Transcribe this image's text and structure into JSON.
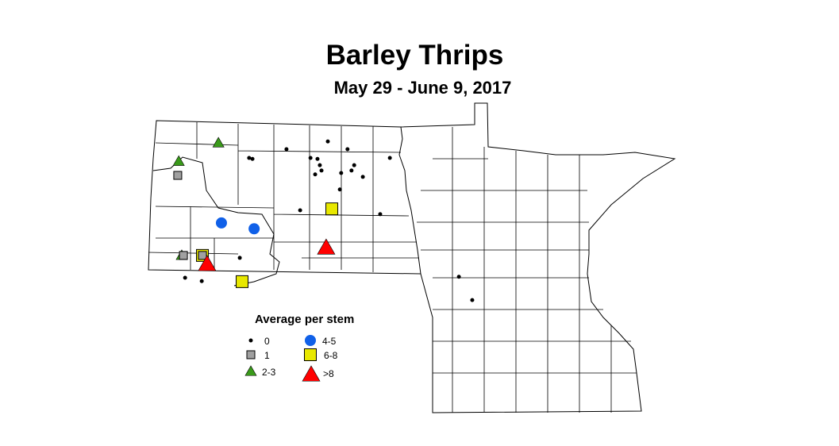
{
  "title": "Barley Thrips",
  "subtitle": "May 29 - June 9, 2017",
  "legend": {
    "title": "Average per stem",
    "classes": [
      {
        "label": "0",
        "symbol": "dot",
        "color": "#000000"
      },
      {
        "label": "1",
        "symbol": "square",
        "color": "#a0a0a0"
      },
      {
        "label": "2-3",
        "symbol": "triangle",
        "color": "#3a9a1a"
      },
      {
        "label": "4-5",
        "symbol": "circle",
        "color": "#1060e8"
      },
      {
        "label": "6-8",
        "symbol": "square",
        "color": "#e8e800"
      },
      {
        "label": ">8",
        "symbol": "triangle",
        "color": "#ff0000"
      }
    ]
  },
  "sites": [
    {
      "lon": -100.03,
      "lat": 48.46,
      "class": "0"
    },
    {
      "lon": -98.79,
      "lat": 48.62,
      "class": "0"
    },
    {
      "lon": -98.2,
      "lat": 48.46,
      "class": "0"
    },
    {
      "lon": -101.15,
      "lat": 48.28,
      "class": "0"
    },
    {
      "lon": -101.05,
      "lat": 48.26,
      "class": "0"
    },
    {
      "lon": -99.31,
      "lat": 48.28,
      "class": "0"
    },
    {
      "lon": -99.1,
      "lat": 48.26,
      "class": "0"
    },
    {
      "lon": -99.03,
      "lat": 48.13,
      "class": "0"
    },
    {
      "lon": -98.98,
      "lat": 48.02,
      "class": "0"
    },
    {
      "lon": -99.17,
      "lat": 47.94,
      "class": "0"
    },
    {
      "lon": -98.39,
      "lat": 47.97,
      "class": "0"
    },
    {
      "lon": -98.0,
      "lat": 48.13,
      "class": "0"
    },
    {
      "lon": -98.08,
      "lat": 48.02,
      "class": "0"
    },
    {
      "lon": -97.74,
      "lat": 47.89,
      "class": "0"
    },
    {
      "lon": -96.93,
      "lat": 48.28,
      "class": "0"
    },
    {
      "lon": -98.43,
      "lat": 47.63,
      "class": "0"
    },
    {
      "lon": -99.62,
      "lat": 47.2,
      "class": "0"
    },
    {
      "lon": -97.22,
      "lat": 47.12,
      "class": "0"
    },
    {
      "lon": -101.43,
      "lat": 46.22,
      "class": "0"
    },
    {
      "lon": -103.07,
      "lat": 45.81,
      "class": "0"
    },
    {
      "lon": -102.57,
      "lat": 45.74,
      "class": "0"
    },
    {
      "lon": -94.86,
      "lat": 45.83,
      "class": "0"
    },
    {
      "lon": -94.46,
      "lat": 45.35,
      "class": "0"
    },
    {
      "lon": -103.26,
      "lat": 48.21,
      "class": "2-3"
    },
    {
      "lon": -102.07,
      "lat": 48.59,
      "class": "2-3"
    },
    {
      "lon": -103.17,
      "lat": 46.27,
      "class": "2-3"
    },
    {
      "lon": -102.55,
      "lat": 46.27,
      "class": "6-8"
    },
    {
      "lon": -98.67,
      "lat": 47.23,
      "class": "6-8"
    },
    {
      "lon": -101.36,
      "lat": 45.73,
      "class": "6-8"
    },
    {
      "lon": -103.29,
      "lat": 47.92,
      "class": "1"
    },
    {
      "lon": -103.12,
      "lat": 46.27,
      "class": "1"
    },
    {
      "lon": -102.55,
      "lat": 46.27,
      "class": "1"
    },
    {
      "lon": -101.98,
      "lat": 46.94,
      "class": "4-5"
    },
    {
      "lon": -101.0,
      "lat": 46.82,
      "class": "4-5"
    },
    {
      "lon": -98.84,
      "lat": 46.43,
      "class": ">8"
    },
    {
      "lon": -102.41,
      "lat": 46.09,
      "class": ">8"
    }
  ]
}
